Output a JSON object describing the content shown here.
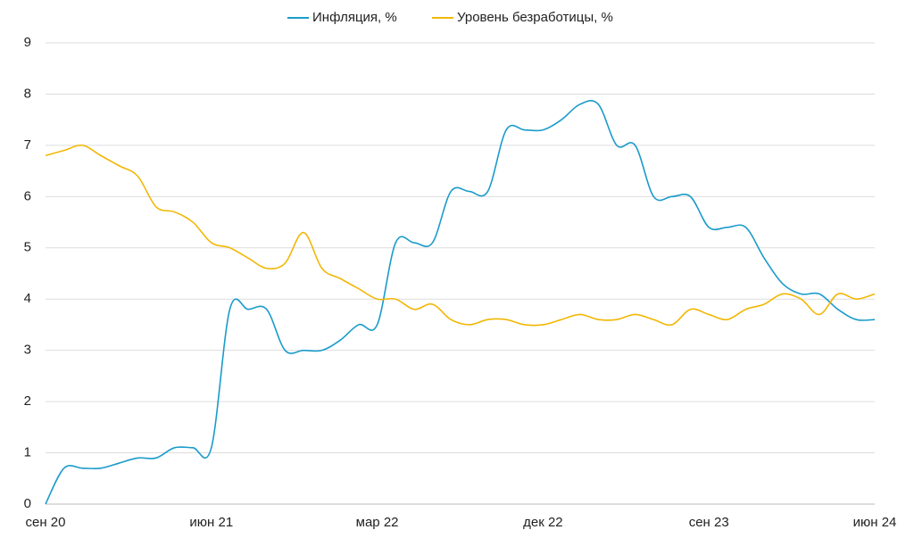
{
  "chart_data": {
    "type": "line",
    "categories": [
      "сен 20",
      null,
      null,
      null,
      null,
      null,
      null,
      null,
      null,
      "июн 21",
      null,
      null,
      null,
      null,
      null,
      null,
      null,
      null,
      "мар 22",
      null,
      null,
      null,
      null,
      null,
      null,
      null,
      null,
      "дек 22",
      null,
      null,
      null,
      null,
      null,
      null,
      null,
      null,
      "сен 23",
      null,
      null,
      null,
      null,
      null,
      null,
      null,
      null,
      "июн 24"
    ],
    "series": [
      {
        "name": "Инфляция, %",
        "color": "#1a9bcb",
        "values": [
          0,
          0.7,
          0.7,
          0.7,
          0.8,
          0.9,
          0.9,
          1.1,
          1.1,
          1.1,
          3.8,
          3.8,
          3.8,
          3.0,
          3.0,
          3.0,
          3.2,
          3.5,
          3.5,
          5.1,
          5.1,
          5.1,
          6.1,
          6.1,
          6.1,
          7.3,
          7.3,
          7.3,
          7.5,
          7.8,
          7.8,
          7.0,
          7.0,
          6.0,
          6.0,
          6.0,
          5.4,
          5.4,
          5.4,
          4.8,
          4.3,
          4.1,
          4.1,
          3.8,
          3.6,
          3.6
        ]
      },
      {
        "name": "Уровень безработицы, %",
        "color": "#f2b705",
        "values": [
          6.8,
          6.9,
          7.0,
          6.8,
          6.6,
          6.4,
          5.8,
          5.7,
          5.5,
          5.1,
          5.0,
          4.8,
          4.6,
          4.7,
          5.3,
          4.6,
          4.4,
          4.2,
          4.0,
          4.0,
          3.8,
          3.9,
          3.6,
          3.5,
          3.6,
          3.6,
          3.5,
          3.5,
          3.6,
          3.7,
          3.6,
          3.6,
          3.7,
          3.6,
          3.5,
          3.8,
          3.7,
          3.6,
          3.8,
          3.9,
          4.1,
          4.0,
          3.7,
          4.1,
          4.0,
          4.1
        ]
      }
    ],
    "ylim": [
      0,
      9
    ],
    "yticks": [
      0,
      1,
      2,
      3,
      4,
      5,
      6,
      7,
      8,
      9
    ],
    "grid": true,
    "legend": "top"
  }
}
